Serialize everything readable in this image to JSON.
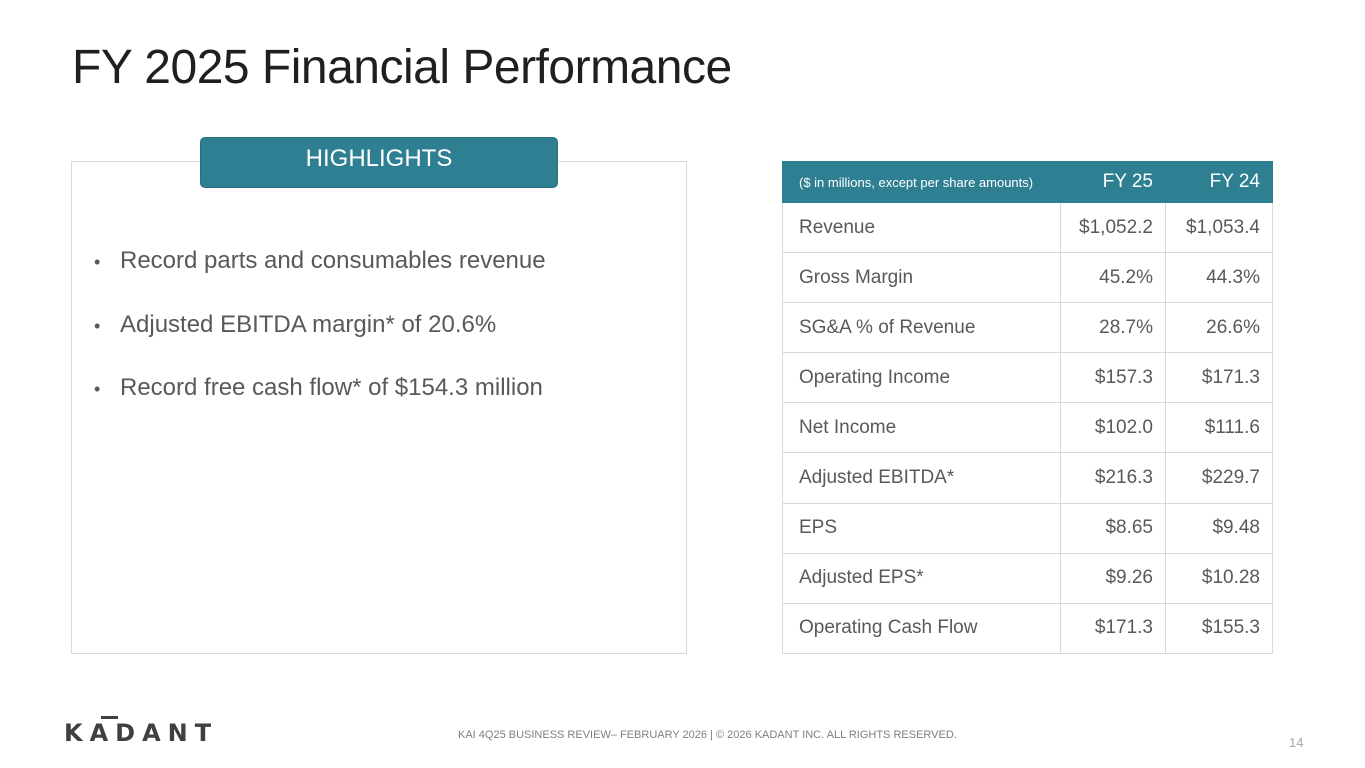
{
  "slide": {
    "title": "FY 2025 Financial Performance",
    "page_number": "14"
  },
  "highlights": {
    "header": "HIGHLIGHTS",
    "bullet_symbol": "•",
    "items": [
      "Record parts and consumables revenue",
      "Adjusted EBITDA margin* of 20.6%",
      "Record free cash flow* of $154.3 million"
    ]
  },
  "financial_table": {
    "headers": [
      "($ in millions, except per share amounts)",
      "FY 25",
      "FY 24"
    ],
    "rows": [
      [
        "Revenue",
        "$1,052.2",
        "$1,053.4"
      ],
      [
        "Gross Margin",
        "45.2%",
        "44.3%"
      ],
      [
        "SG&A % of Revenue",
        "28.7%",
        "26.6%"
      ],
      [
        "Operating Income",
        "$157.3",
        "$171.3"
      ],
      [
        "Net Income",
        "$102.0",
        "$111.6"
      ],
      [
        "Adjusted EBITDA*",
        "$216.3",
        "$229.7"
      ],
      [
        "EPS",
        "$8.65",
        "$9.48"
      ],
      [
        "Adjusted EPS*",
        "$9.26",
        "$10.28"
      ],
      [
        "Operating Cash Flow",
        "$171.3",
        "$155.3"
      ]
    ]
  },
  "footer": {
    "logo_text": "KADANT",
    "text": "KAI 4Q25 BUSINESS REVIEW– FEBRUARY 2026 | © 2026 KADANT INC. ALL RIGHTS RESERVED."
  },
  "colors": {
    "accent": "#2f7f92",
    "body_text": "#595959",
    "title_text": "#1f1f1f",
    "border": "#d9d9d9"
  }
}
